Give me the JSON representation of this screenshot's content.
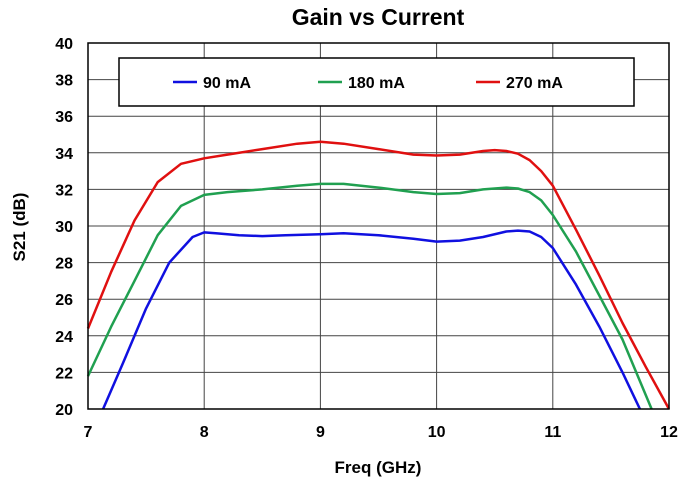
{
  "chart_data": {
    "type": "line",
    "title": "Gain vs Current",
    "xlabel": "Freq (GHz)",
    "ylabel": "S21 (dB)",
    "xlim": [
      7,
      12
    ],
    "ylim": [
      20,
      40
    ],
    "xticks": [
      7,
      8,
      9,
      10,
      11,
      12
    ],
    "yticks": [
      20,
      22,
      24,
      26,
      28,
      30,
      32,
      34,
      36,
      38,
      40
    ],
    "grid": true,
    "legend_position": "top",
    "series": [
      {
        "name": "90 mA",
        "color": "#1010e0",
        "x": [
          7.13,
          7.3,
          7.5,
          7.7,
          7.9,
          8.0,
          8.1,
          8.3,
          8.5,
          8.7,
          9.0,
          9.2,
          9.5,
          9.8,
          10.0,
          10.2,
          10.4,
          10.6,
          10.7,
          10.8,
          10.9,
          11.0,
          11.2,
          11.4,
          11.6,
          11.75
        ],
        "y": [
          20.0,
          22.5,
          25.5,
          28.0,
          29.4,
          29.65,
          29.6,
          29.5,
          29.45,
          29.5,
          29.55,
          29.6,
          29.5,
          29.3,
          29.15,
          29.2,
          29.4,
          29.7,
          29.75,
          29.7,
          29.4,
          28.8,
          26.8,
          24.5,
          22.0,
          20.0
        ]
      },
      {
        "name": "180 mA",
        "color": "#20a050",
        "x": [
          7.0,
          7.2,
          7.4,
          7.6,
          7.8,
          8.0,
          8.2,
          8.5,
          8.8,
          9.0,
          9.2,
          9.5,
          9.8,
          10.0,
          10.2,
          10.4,
          10.6,
          10.7,
          10.8,
          10.9,
          11.0,
          11.2,
          11.4,
          11.6,
          11.85
        ],
        "y": [
          21.8,
          24.5,
          27.0,
          29.5,
          31.1,
          31.7,
          31.85,
          32.0,
          32.2,
          32.3,
          32.3,
          32.1,
          31.85,
          31.75,
          31.8,
          32.0,
          32.1,
          32.05,
          31.85,
          31.4,
          30.6,
          28.6,
          26.2,
          23.8,
          20.0
        ]
      },
      {
        "name": "270 mA",
        "color": "#e01010",
        "x": [
          7.0,
          7.2,
          7.4,
          7.6,
          7.8,
          8.0,
          8.2,
          8.5,
          8.8,
          9.0,
          9.2,
          9.5,
          9.8,
          10.0,
          10.2,
          10.4,
          10.5,
          10.6,
          10.7,
          10.8,
          10.9,
          11.0,
          11.2,
          11.4,
          11.6,
          11.8,
          12.0
        ],
        "y": [
          24.4,
          27.5,
          30.3,
          32.4,
          33.4,
          33.7,
          33.9,
          34.2,
          34.5,
          34.6,
          34.5,
          34.2,
          33.9,
          33.85,
          33.9,
          34.1,
          34.15,
          34.1,
          33.95,
          33.6,
          33.0,
          32.2,
          29.8,
          27.3,
          24.7,
          22.3,
          20.0
        ]
      }
    ]
  }
}
